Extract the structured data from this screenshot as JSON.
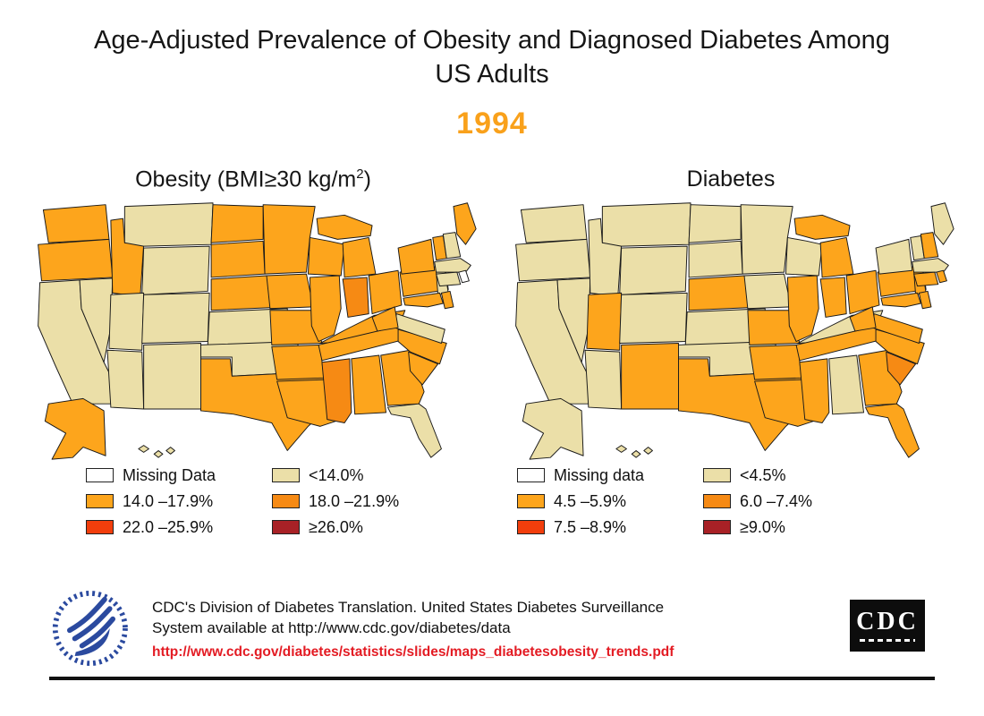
{
  "slide": {
    "title": "Age-Adjusted Prevalence of Obesity and Diagnosed Diabetes Among US Adults",
    "year": "1994",
    "year_color": "#f9a11b"
  },
  "colors": {
    "missing": "#ffffff",
    "band1": "#ebdfa8",
    "band2": "#fda51c",
    "band3": "#f68a14",
    "band4": "#f23e0c",
    "band5": "#a82126"
  },
  "maps": {
    "obesity": {
      "title_prefix": "Obesity (BMI≥30 kg/m",
      "title_sup": "2",
      "title_suffix": ")",
      "legend": {
        "col1": [
          {
            "band": "missing",
            "label": "Missing Data"
          },
          {
            "band": "band2",
            "label": "14.0 –17.9%"
          },
          {
            "band": "band4",
            "label": "22.0 –25.9%"
          }
        ],
        "col2": [
          {
            "band": "band1",
            "label": "<14.0%"
          },
          {
            "band": "band3",
            "label": "18.0 –21.9%"
          },
          {
            "band": "band5",
            "label": "≥26.0%"
          }
        ]
      }
    },
    "diabetes": {
      "title": "Diabetes",
      "legend": {
        "col1": [
          {
            "band": "missing",
            "label": "Missing data"
          },
          {
            "band": "band2",
            "label": "4.5 –5.9%"
          },
          {
            "band": "band4",
            "label": "7.5 –8.9%"
          }
        ],
        "col2": [
          {
            "band": "band1",
            "label": "<4.5%"
          },
          {
            "band": "band3",
            "label": "6.0 –7.4%"
          },
          {
            "band": "band5",
            "label": "≥9.0%"
          }
        ]
      }
    }
  },
  "chart_data": [
    {
      "type": "choropleth_map",
      "region": "United States by state",
      "title": "Obesity (BMI≥30 kg/m2)",
      "year": "1994",
      "unit": "percent of adults, age-adjusted",
      "bin_labels": {
        "missing": "Missing Data",
        "band1": "<14.0%",
        "band2": "14.0 –17.9%",
        "band3": "18.0 –21.9%",
        "band4": "22.0 –25.9%",
        "band5": "≥26.0%"
      },
      "state_bins": {
        "WA": "band2",
        "OR": "band2",
        "CA": "band1",
        "NV": "band1",
        "ID": "band2",
        "MT": "band1",
        "WY": "band1",
        "UT": "band1",
        "CO": "band1",
        "AZ": "band1",
        "NM": "band1",
        "ND": "band2",
        "SD": "band2",
        "NE": "band2",
        "KS": "band1",
        "OK": "band1",
        "TX": "band2",
        "MN": "band2",
        "IA": "band2",
        "MO": "band2",
        "AR": "band2",
        "LA": "band2",
        "WI": "band2",
        "IL": "band2",
        "MI": "band2",
        "IN": "band3",
        "OH": "band2",
        "KY": "band2",
        "TN": "band2",
        "MS": "band3",
        "AL": "band2",
        "GA": "band2",
        "FL": "band1",
        "SC": "band2",
        "NC": "band2",
        "VA": "band1",
        "WV": "band2",
        "PA": "band2",
        "NY": "band2",
        "NJ": "band1",
        "MD": "band2",
        "DE": "band2",
        "VT": "band2",
        "NH": "band1",
        "ME": "band2",
        "MA": "band1",
        "CT": "band1",
        "RI": "missing",
        "AK": "band2",
        "HI": "band1"
      }
    },
    {
      "type": "choropleth_map",
      "region": "United States by state",
      "title": "Diabetes",
      "year": "1994",
      "unit": "percent of adults, age-adjusted",
      "bin_labels": {
        "missing": "Missing data",
        "band1": "<4.5%",
        "band2": "4.5 –5.9%",
        "band3": "6.0 –7.4%",
        "band4": "7.5 –8.9%",
        "band5": "≥9.0%"
      },
      "state_bins": {
        "WA": "band1",
        "OR": "band1",
        "CA": "band1",
        "NV": "band1",
        "ID": "band1",
        "MT": "band1",
        "WY": "band1",
        "UT": "band2",
        "CO": "band1",
        "AZ": "band1",
        "NM": "band2",
        "ND": "band1",
        "SD": "band1",
        "NE": "band2",
        "KS": "band1",
        "OK": "band1",
        "TX": "band2",
        "MN": "band1",
        "IA": "band1",
        "MO": "band2",
        "AR": "band2",
        "LA": "band2",
        "WI": "band1",
        "IL": "band2",
        "MI": "band2",
        "IN": "band2",
        "OH": "band2",
        "KY": "band1",
        "TN": "band2",
        "MS": "band2",
        "AL": "band1",
        "GA": "band2",
        "FL": "band2",
        "SC": "band3",
        "NC": "band2",
        "VA": "band2",
        "WV": "band2",
        "PA": "band2",
        "NY": "band1",
        "NJ": "band2",
        "MD": "band2",
        "DE": "band2",
        "VT": "band1",
        "NH": "band2",
        "ME": "band1",
        "MA": "band1",
        "CT": "band2",
        "RI": "band2",
        "AK": "band1",
        "HI": "band1"
      }
    }
  ],
  "footer": {
    "line1": "CDC's Division of Diabetes Translation. United States Diabetes Surveillance",
    "line2": "System available at http://www.cdc.gov/diabetes/data",
    "link": "http://www.cdc.gov/diabetes/statistics/slides/maps_diabetesobesity_trends.pdf",
    "cdc_logo_text": "CDC"
  }
}
